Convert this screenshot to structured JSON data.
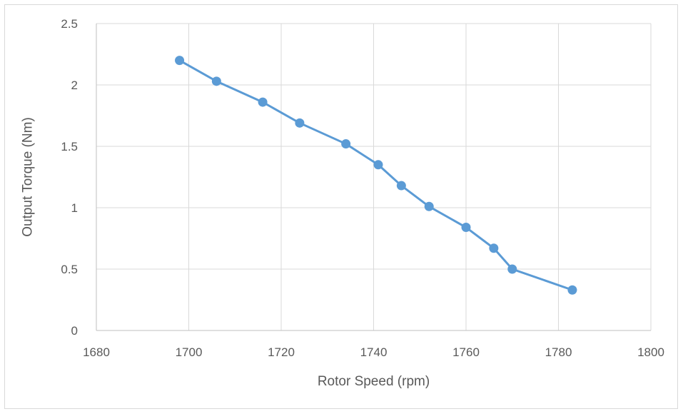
{
  "chart_data": {
    "type": "scatter",
    "title": "",
    "xlabel": "Rotor Speed (rpm)",
    "ylabel": "Output Torque (Nm)",
    "xlim": [
      1680,
      1800
    ],
    "ylim": [
      0,
      2.5
    ],
    "x_ticks": [
      "1680",
      "1700",
      "1720",
      "1740",
      "1760",
      "1780",
      "1800"
    ],
    "y_ticks": [
      "0",
      "0.5",
      "1",
      "1.5",
      "2",
      "2.5"
    ],
    "grid": true,
    "line_color": "#5b9bd5",
    "series": [
      {
        "x": [
          1698,
          1706,
          1716,
          1724,
          1734,
          1741,
          1746,
          1752,
          1760,
          1766,
          1770,
          1783
        ],
        "y": [
          2.2,
          2.03,
          1.86,
          1.69,
          1.52,
          1.35,
          1.18,
          1.01,
          0.84,
          0.67,
          0.5,
          0.33
        ]
      }
    ]
  }
}
